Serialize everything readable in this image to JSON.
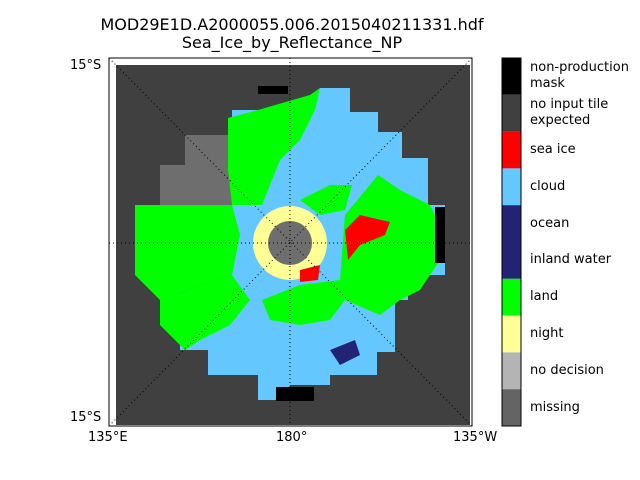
{
  "title_line1": "MOD29E1D.A2000055.006.2015040211331.hdf",
  "title_line2": "Sea_Ice_by_Reflectance_NP",
  "map_labels": {
    "lat_left_top": "15°S",
    "lat_left_bottom": "15°S",
    "lon_left": "135°E",
    "lon_center": "180°",
    "lon_right": "135°W"
  },
  "colorbar": [
    {
      "label": "non-production\nmask",
      "color": "#000000"
    },
    {
      "label": "no input tile\nexpected",
      "color": "#404040"
    },
    {
      "label": "sea ice",
      "color": "#ff0000"
    },
    {
      "label": "cloud",
      "color": "#64c8ff"
    },
    {
      "label": "ocean",
      "color": "#232375"
    },
    {
      "label": "inland water",
      "color": "#232375"
    },
    {
      "label": "land",
      "color": "#00ff00"
    },
    {
      "label": "night",
      "color": "#ffff96"
    },
    {
      "label": "no decision",
      "color": "#b4b4b4"
    },
    {
      "label": "missing",
      "color": "#646464"
    }
  ]
}
